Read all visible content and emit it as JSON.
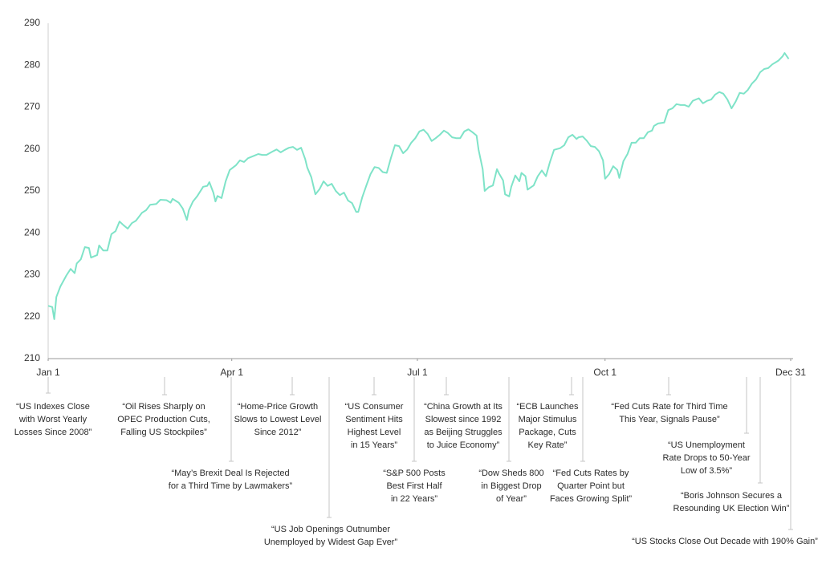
{
  "chart_data": {
    "type": "line",
    "color": "#7fe3c8",
    "grid": false,
    "xlim": [
      0,
      364
    ],
    "xticks": [
      {
        "value": 0,
        "label": "Jan 1"
      },
      {
        "value": 90,
        "label": "Apr 1"
      },
      {
        "value": 181,
        "label": "Jul 1"
      },
      {
        "value": 273,
        "label": "Oct 1"
      },
      {
        "value": 364,
        "label": "Dec 31"
      }
    ],
    "ylim": [
      210,
      290
    ],
    "yticks": [
      210,
      220,
      230,
      240,
      250,
      260,
      270,
      280,
      290
    ],
    "x": [
      0,
      2,
      3,
      4,
      6,
      9,
      11,
      13,
      14,
      16,
      18,
      20,
      21,
      24,
      25,
      27,
      29,
      31,
      33,
      35,
      37,
      39,
      41,
      43,
      46,
      48,
      50,
      53,
      55,
      58,
      60,
      61,
      64,
      66,
      68,
      69,
      71,
      73,
      76,
      78,
      79,
      81,
      82,
      83,
      85,
      87,
      89,
      92,
      94,
      96,
      98,
      101,
      103,
      105,
      107,
      110,
      112,
      114,
      116,
      118,
      120,
      122,
      124,
      126,
      127,
      129,
      131,
      133,
      135,
      137,
      139,
      141,
      143,
      145,
      147,
      149,
      151,
      152,
      154,
      156,
      158,
      160,
      162,
      164,
      166,
      168,
      170,
      172,
      174,
      176,
      178,
      180,
      182,
      184,
      186,
      188,
      190,
      192,
      194,
      196,
      198,
      200,
      202,
      204,
      206,
      208,
      210,
      211,
      213,
      214,
      216,
      218,
      220,
      221,
      223,
      224,
      226,
      227,
      229,
      231,
      232,
      234,
      235,
      237,
      238,
      240,
      242,
      244,
      246,
      248,
      251,
      253,
      255,
      257,
      259,
      260,
      262,
      264,
      266,
      268,
      270,
      272,
      273,
      275,
      277,
      279,
      280,
      282,
      284,
      286,
      288,
      290,
      292,
      294,
      296,
      297,
      299,
      302,
      304,
      306,
      308,
      310,
      312,
      314,
      316,
      319,
      321,
      323,
      325,
      327,
      329,
      331,
      333,
      335,
      337,
      339,
      341,
      343,
      345,
      347,
      349,
      351,
      353,
      355,
      357,
      358,
      360,
      361,
      363
    ],
    "values": [
      222.6,
      222.3,
      219.4,
      224.7,
      227.2,
      229.9,
      231.4,
      230.4,
      232.7,
      233.7,
      236.6,
      236.4,
      234.1,
      234.7,
      237.0,
      235.8,
      235.8,
      239.7,
      240.4,
      242.7,
      241.8,
      241.0,
      242.3,
      242.9,
      244.8,
      245.4,
      246.7,
      246.9,
      247.9,
      247.8,
      247.2,
      248.1,
      247.2,
      245.8,
      243.1,
      245.4,
      247.5,
      248.7,
      251.0,
      251.2,
      252.1,
      249.6,
      247.5,
      248.8,
      248.3,
      252.3,
      255.0,
      256.1,
      257.3,
      256.9,
      257.8,
      258.4,
      258.8,
      258.6,
      258.6,
      259.4,
      259.9,
      259.2,
      259.8,
      260.3,
      260.5,
      259.8,
      260.3,
      257.6,
      255.6,
      253.3,
      249.2,
      250.4,
      252.3,
      251.2,
      251.7,
      250.0,
      249.0,
      249.6,
      247.7,
      247.1,
      245.0,
      245.0,
      248.5,
      251.3,
      254.0,
      255.7,
      255.5,
      254.5,
      254.3,
      257.8,
      260.9,
      260.7,
      259.0,
      259.9,
      261.5,
      262.6,
      264.2,
      264.6,
      263.6,
      261.9,
      262.6,
      263.4,
      264.4,
      263.8,
      262.8,
      262.6,
      262.6,
      264.2,
      264.7,
      264.0,
      263.2,
      259.8,
      255.2,
      250.0,
      250.9,
      251.3,
      255.2,
      254.2,
      252.5,
      249.2,
      248.7,
      251.0,
      253.7,
      252.3,
      254.3,
      253.5,
      250.3,
      251.0,
      251.3,
      253.5,
      254.9,
      253.5,
      256.9,
      259.8,
      260.2,
      260.9,
      262.8,
      263.4,
      262.4,
      262.8,
      263.0,
      262.0,
      260.7,
      260.5,
      259.5,
      257.3,
      252.9,
      254.0,
      255.9,
      255.0,
      253.1,
      257.1,
      258.8,
      261.5,
      261.5,
      262.6,
      262.6,
      264.0,
      264.4,
      265.5,
      266.1,
      266.3,
      269.3,
      269.7,
      270.7,
      270.5,
      270.5,
      270.1,
      271.5,
      272.1,
      270.9,
      271.5,
      271.8,
      273.0,
      273.6,
      273.2,
      271.8,
      269.7,
      271.3,
      273.4,
      273.2,
      274.1,
      275.6,
      276.6,
      278.3,
      279.1,
      279.3,
      280.2,
      280.8,
      281.1,
      282.1,
      282.9,
      281.5
    ],
    "annotations": [
      {
        "lines": [
          "“US Indexes Close",
          "with Worst Yearly",
          "Losses Since 2008”"
        ]
      },
      {
        "lines": [
          "“Oil Rises Sharply on",
          "OPEC Production Cuts,",
          "Falling US Stockpiles”"
        ]
      },
      {
        "lines": [
          "“May’s Brexit Deal Is Rejected",
          "for a Third Time by Lawmakers”"
        ]
      },
      {
        "lines": [
          "“Home-Price Growth",
          "Slows to Lowest Level",
          "Since 2012”"
        ]
      },
      {
        "lines": [
          "“US Job Openings Outnumber",
          "Unemployed by Widest Gap Ever”"
        ]
      },
      {
        "lines": [
          "“US Consumer",
          "Sentiment Hits",
          "Highest Level",
          "in 15 Years”"
        ]
      },
      {
        "lines": [
          "“S&P 500 Posts",
          "Best First Half",
          "in 22 Years”"
        ]
      },
      {
        "lines": [
          "“China Growth at Its",
          "Slowest since 1992",
          "as Beijing Struggles",
          "to Juice Economy”"
        ]
      },
      {
        "lines": [
          "“Dow Sheds 800",
          "in Biggest Drop",
          "of Year”"
        ]
      },
      {
        "lines": [
          "“ECB Launches",
          "Major Stimulus",
          "Package, Cuts",
          "Key Rate”"
        ]
      },
      {
        "lines": [
          "“Fed Cuts Rates by",
          "Quarter Point but",
          "Faces Growing Split”"
        ]
      },
      {
        "lines": [
          "“Fed Cuts Rate for Third Time",
          "This Year, Signals Pause”"
        ]
      },
      {
        "lines": [
          "“US Unemployment",
          "Rate Drops to 50-Year",
          "Low of 3.5%”"
        ]
      },
      {
        "lines": [
          "“Boris Johnson Secures a",
          "Resounding UK Election Win”"
        ]
      },
      {
        "lines": [
          "“US Stocks Close Out Decade with 190% Gain”"
        ]
      }
    ]
  }
}
